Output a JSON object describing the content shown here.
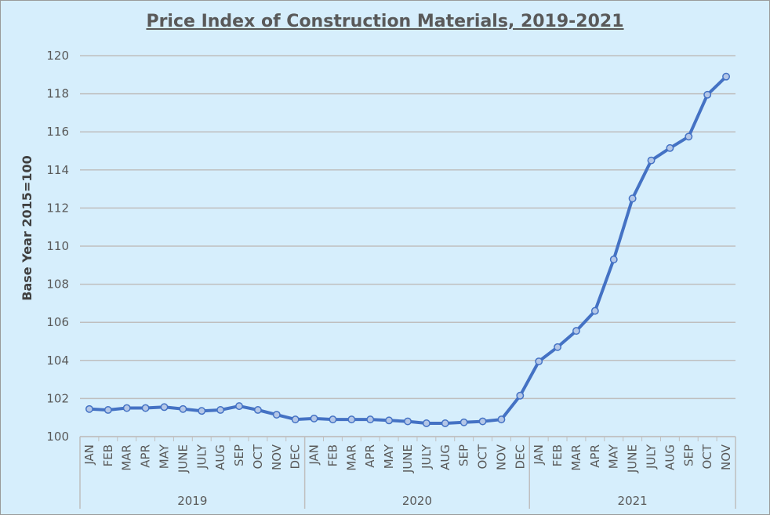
{
  "chart_data": {
    "type": "line",
    "title": "Price Index of Construction Materials, 2019-2021",
    "xlabel": "",
    "ylabel": "Base Year 2015=100",
    "ylim": [
      100,
      120
    ],
    "yticks": [
      100,
      102,
      104,
      106,
      108,
      110,
      112,
      114,
      116,
      118,
      120
    ],
    "grid": true,
    "legend": "none",
    "years": [
      {
        "label": "2019",
        "months": [
          "JAN",
          "FEB",
          "MAR",
          "APR",
          "MAY",
          "JUNE",
          "JULY",
          "AUG",
          "SEP",
          "OCT",
          "NOV",
          "DEC"
        ]
      },
      {
        "label": "2020",
        "months": [
          "JAN",
          "FEB",
          "MAR",
          "APR",
          "MAY",
          "JUNE",
          "JULY",
          "AUG",
          "SEP",
          "OCT",
          "NOV",
          "DEC"
        ]
      },
      {
        "label": "2021",
        "months": [
          "JAN",
          "FEB",
          "MAR",
          "APR",
          "MAY",
          "JUNE",
          "JULY",
          "AUG",
          "SEP",
          "OCT",
          "NOV"
        ]
      }
    ],
    "series": [
      {
        "values": [
          101.45,
          101.4,
          101.5,
          101.5,
          101.55,
          101.45,
          101.35,
          101.4,
          101.6,
          101.4,
          101.15,
          100.9,
          100.95,
          100.9,
          100.9,
          100.9,
          100.85,
          100.8,
          100.7,
          100.7,
          100.75,
          100.8,
          100.9,
          102.15,
          103.95,
          104.7,
          105.55,
          106.6,
          109.3,
          112.5,
          114.5,
          115.15,
          115.75,
          117.95,
          118.9
        ]
      }
    ],
    "colors": {
      "line": "#4472c4",
      "marker_fill": "#b4c7e7",
      "grid": "#bfbfbf",
      "background": "#d6eefc"
    }
  }
}
